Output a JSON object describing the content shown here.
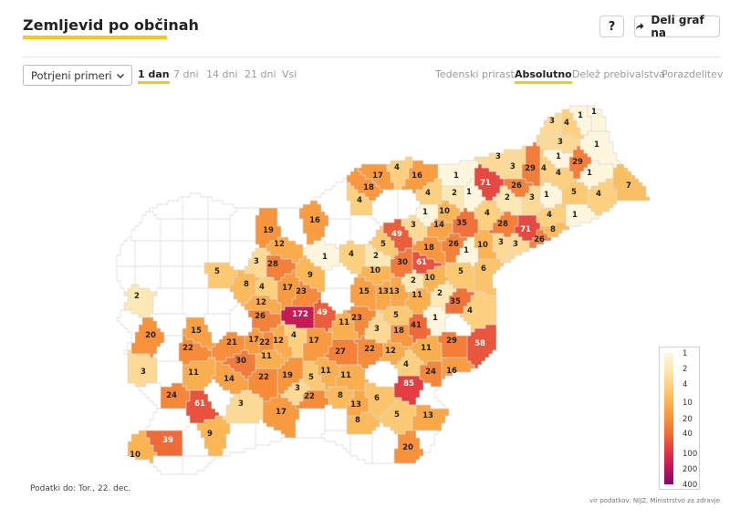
{
  "header": {
    "title": "Zemljevid po občinah",
    "help_label": "?",
    "share_label": "Deli graf na"
  },
  "controls": {
    "select_value": "Potrjeni primeri",
    "period_tabs": [
      {
        "label": "1 dan",
        "active": true
      },
      {
        "label": "7 dni",
        "active": false
      },
      {
        "label": "14 dni",
        "active": false
      },
      {
        "label": "21 dni",
        "active": false
      },
      {
        "label": "Vsi",
        "active": false
      }
    ],
    "measure_tabs": [
      {
        "label": "Tedenski prirast",
        "active": false
      },
      {
        "label": "Absolutno",
        "active": true
      },
      {
        "label": "Delež prebivalstva",
        "active": false
      },
      {
        "label": "Porazdelitev",
        "active": false
      }
    ]
  },
  "map": {
    "colors": {
      "no_data": "#ffffff",
      "border": "#d9d9d9",
      "label_dark": "#222222",
      "label_light": "#ffffff"
    },
    "municipality_values": [
      3,
      4,
      1,
      1,
      3,
      4,
      1,
      1,
      4,
      29,
      3,
      3,
      1,
      1,
      5,
      4,
      7,
      1,
      2,
      3,
      17,
      4,
      16,
      2,
      4,
      1,
      1,
      71,
      3,
      26,
      8,
      4,
      1,
      10,
      18,
      4,
      14,
      3,
      4,
      28,
      5,
      2,
      10,
      12,
      3,
      9,
      2,
      10,
      16,
      1,
      1,
      5,
      6,
      10,
      3,
      4,
      35,
      17,
      4,
      5,
      12,
      8,
      3,
      49,
      18,
      26,
      4,
      4,
      2,
      3,
      11,
      11,
      19,
      3,
      5,
      1,
      11,
      16,
      30,
      61,
      3,
      13,
      8,
      22,
      17,
      5,
      11,
      5,
      11,
      3,
      1,
      18,
      3,
      7,
      11,
      13,
      13,
      9,
      1,
      23,
      12,
      5,
      4,
      9,
      3,
      15,
      11,
      2,
      20,
      10,
      172,
      23,
      11,
      41,
      5,
      15,
      17,
      12,
      17,
      3,
      21,
      27,
      22,
      23,
      1,
      6,
      9,
      12,
      9,
      8,
      29,
      58,
      3,
      2,
      7,
      22,
      11,
      14,
      4,
      3,
      12,
      7,
      5,
      2,
      5,
      1,
      6,
      4,
      20,
      1,
      10,
      24,
      3,
      12,
      85,
      6,
      1,
      5,
      3,
      2,
      6,
      3,
      7,
      13,
      2,
      8,
      20,
      9,
      39,
      10
    ],
    "legend": {
      "ticks": [
        "1",
        "2",
        "4",
        "10",
        "20",
        "40",
        "100",
        "200",
        "400"
      ],
      "colors": [
        "#fdf5dc",
        "#fce8b5",
        "#fcd07e",
        "#fbb451",
        "#f7923b",
        "#ef6a37",
        "#e23546",
        "#c0145a",
        "#7d0a6e"
      ]
    }
  },
  "footer": {
    "date_text": "Podatki do: Tor., 22. dec.",
    "source_text": "vir podatkov: NIJZ, Ministrstvo za zdravje"
  }
}
